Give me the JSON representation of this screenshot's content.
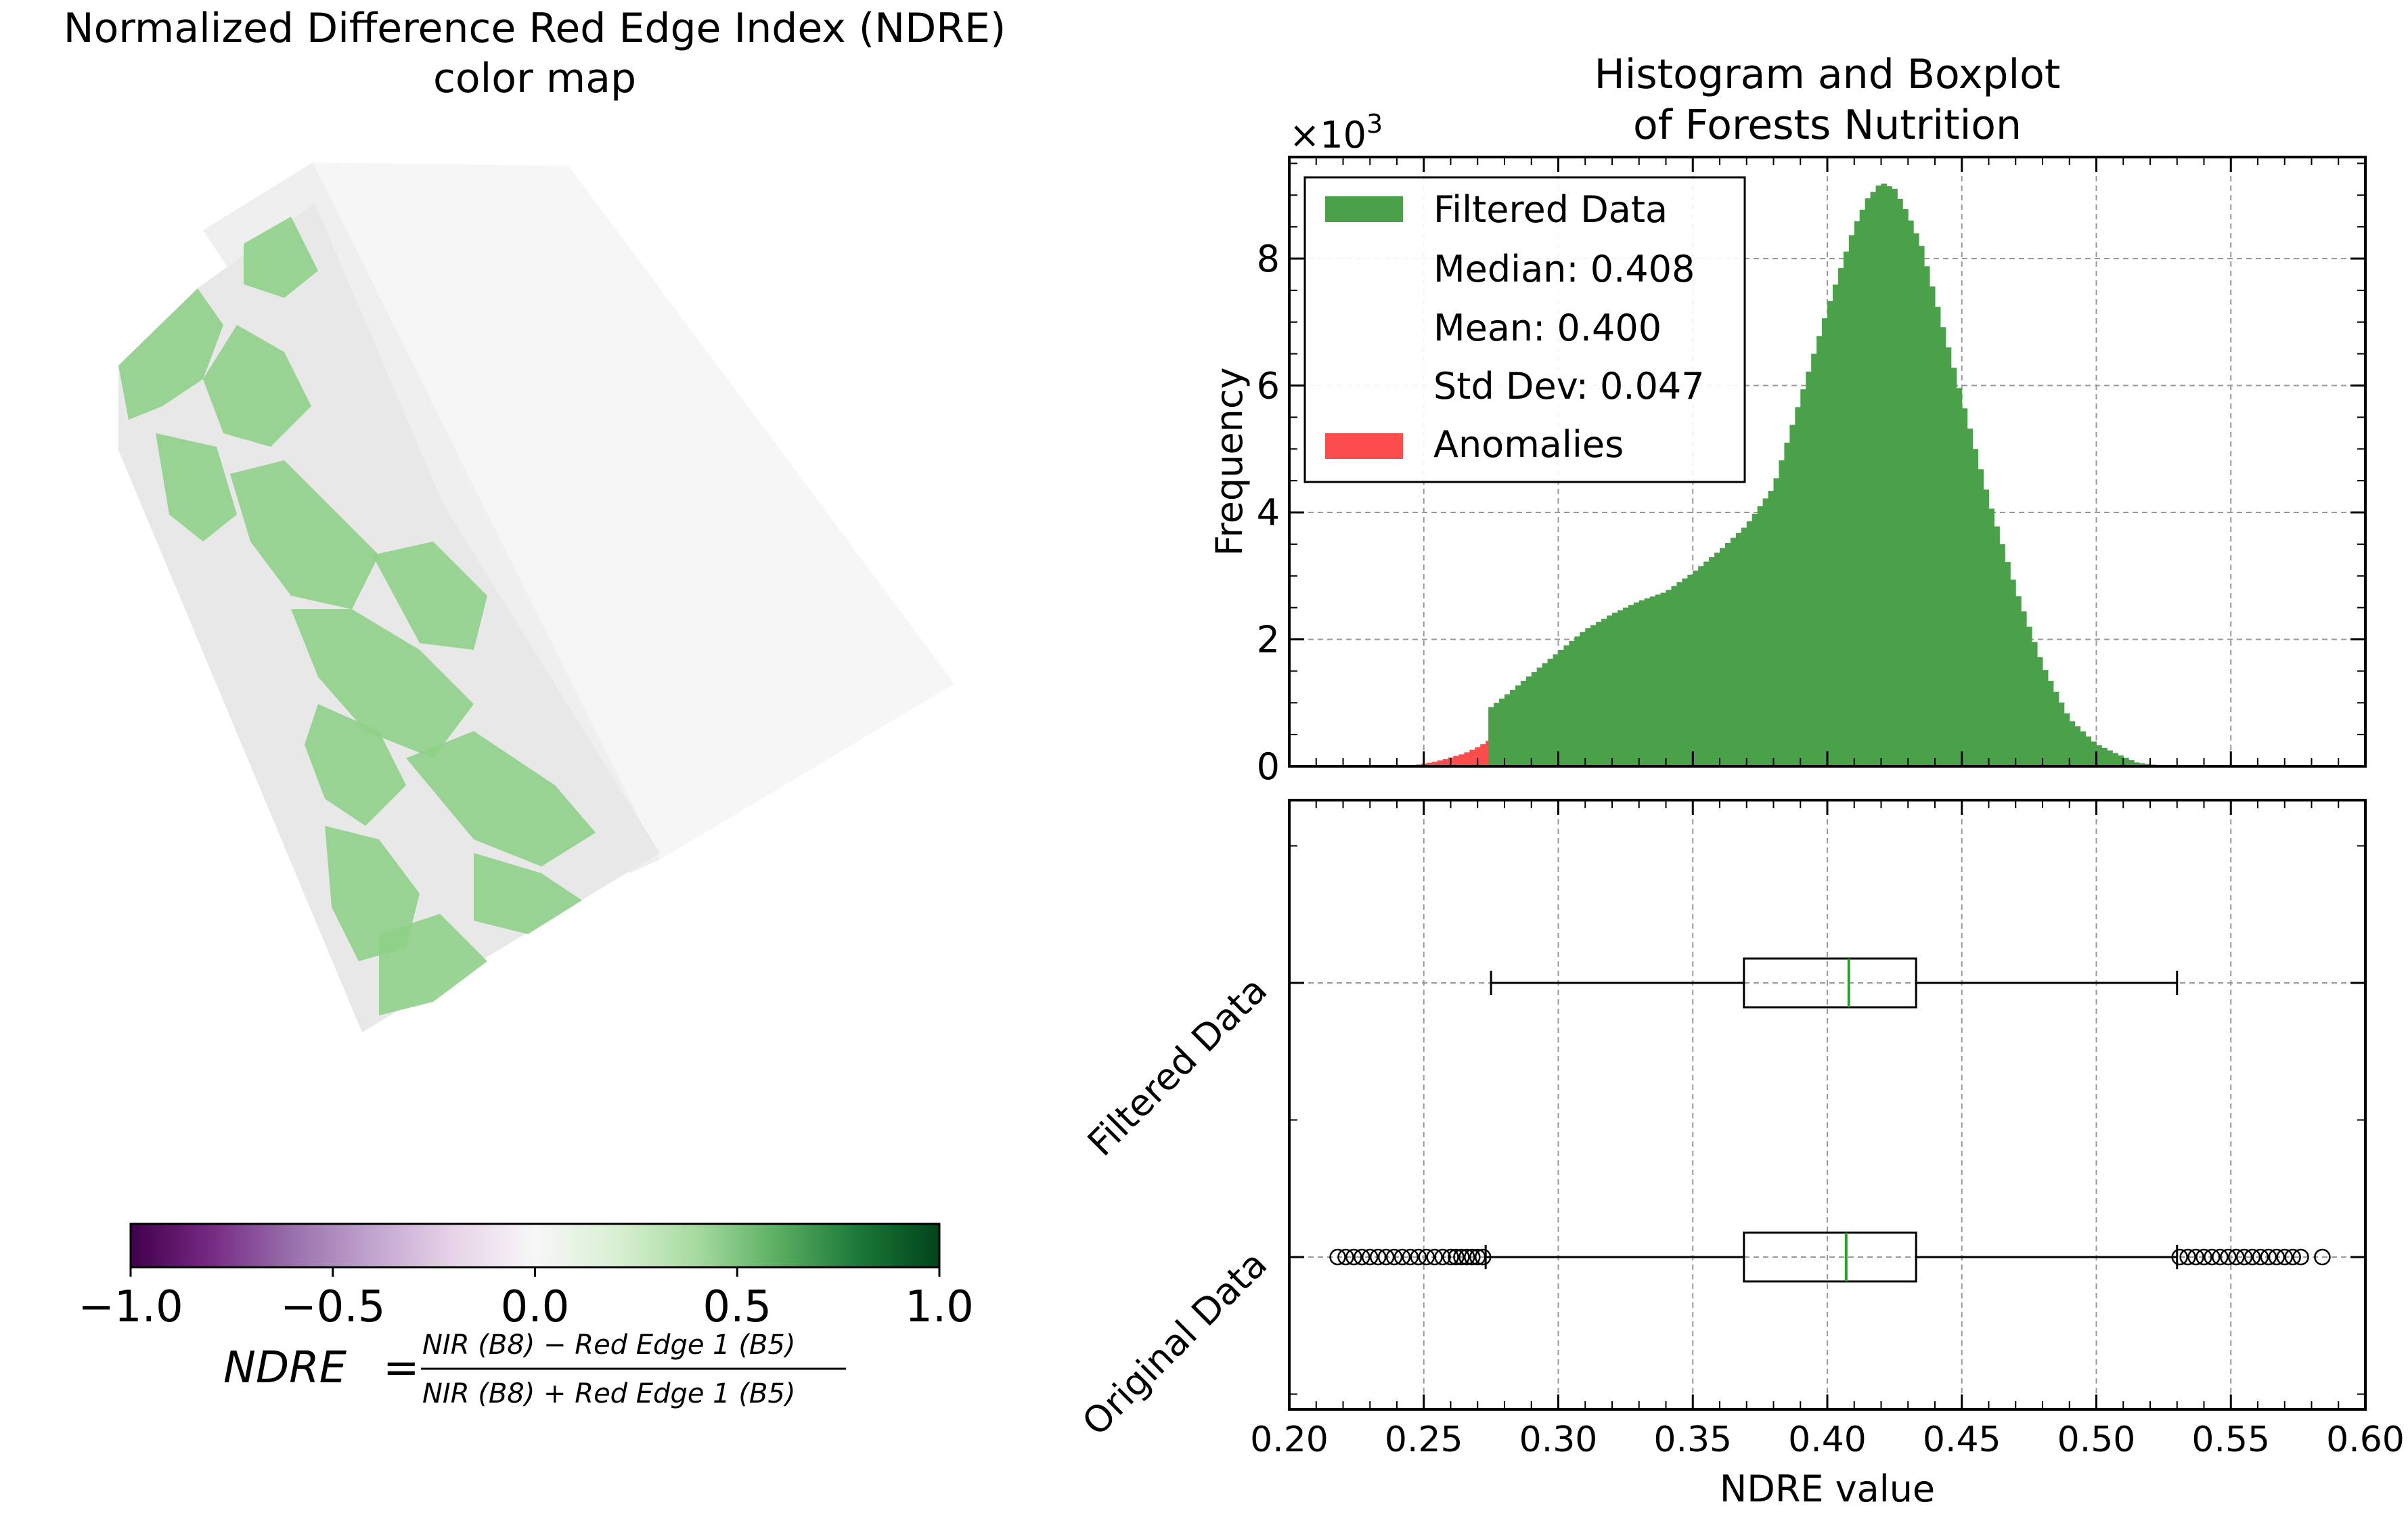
{
  "left_panel": {
    "title_line1": "Normalized Difference Red Edge Index (NDRE)",
    "title_line2": "color map",
    "colorbar": {
      "colormap": "PRGn",
      "stops": [
        "#40004b",
        "#762a83",
        "#9970ab",
        "#c2a5cf",
        "#e7d4e8",
        "#f7f7f7",
        "#d9f0d3",
        "#a6dba0",
        "#5aae61",
        "#1b7837",
        "#00441b"
      ],
      "range": [
        -1.0,
        1.0
      ],
      "tick_labels": [
        "−1.0",
        "−0.5",
        "0.0",
        "0.5",
        "1.0"
      ]
    },
    "formula": {
      "lhs": "NDRE",
      "equals": "=",
      "numerator": "NIR (B8) − Red Edge 1 (B5)",
      "denominator": "NIR (B8) + Red Edge 1 (B5)"
    },
    "map_colors": {
      "vegetation": "#8fd08a",
      "bare": "#e8e8e8",
      "background_swath": "#f6f6f6"
    }
  },
  "chart_data": [
    {
      "type": "histogram",
      "title_line1": "Histogram and Boxplot",
      "title_line2": "of Forests Nutrition",
      "ylabel": "Frequency",
      "y_scale_label": "×10",
      "y_scale_exponent": "3",
      "xlim": [
        0.2,
        0.6
      ],
      "ylim": [
        0,
        9.6
      ],
      "y_ticks": [
        0,
        2,
        4,
        6,
        8
      ],
      "y_tick_labels": [
        "0",
        "2",
        "4",
        "6",
        "8"
      ],
      "grid": true,
      "legend_position": "top-left",
      "legend": {
        "filtered_label": "Filtered Data",
        "median_label": "Median: 0.408",
        "mean_label": "Mean: 0.400",
        "std_label": "Std Dev: 0.047",
        "anomalies_label": "Anomalies"
      },
      "colors": {
        "filtered": "#4aa14a",
        "anomalies": "#fb4d4d"
      },
      "filtered_curve": {
        "x": [
          0.274,
          0.28,
          0.29,
          0.3,
          0.31,
          0.32,
          0.33,
          0.34,
          0.35,
          0.36,
          0.37,
          0.38,
          0.39,
          0.4,
          0.41,
          0.415,
          0.42,
          0.425,
          0.43,
          0.435,
          0.44,
          0.45,
          0.46,
          0.47,
          0.48,
          0.49,
          0.5,
          0.51,
          0.515,
          0.52,
          0.525,
          0.53
        ],
        "y": [
          0.9,
          1.1,
          1.45,
          1.8,
          2.15,
          2.4,
          2.6,
          2.75,
          3.05,
          3.4,
          3.8,
          4.4,
          5.8,
          7.2,
          8.5,
          8.95,
          9.2,
          9.1,
          8.7,
          8.2,
          7.4,
          5.8,
          4.2,
          2.8,
          1.6,
          0.75,
          0.35,
          0.15,
          0.06,
          0.03,
          0.015,
          0.0
        ]
      },
      "anomaly_curve": {
        "x": [
          0.245,
          0.25,
          0.255,
          0.26,
          0.265,
          0.27,
          0.274
        ],
        "y": [
          0.01,
          0.04,
          0.08,
          0.14,
          0.2,
          0.3,
          0.4
        ]
      }
    },
    {
      "type": "boxplot",
      "xlabel": "NDRE value",
      "xlim": [
        0.2,
        0.6
      ],
      "x_ticks": [
        0.2,
        0.25,
        0.3,
        0.35,
        0.4,
        0.45,
        0.5,
        0.55,
        0.6
      ],
      "x_tick_labels": [
        "0.20",
        "0.25",
        "0.30",
        "0.35",
        "0.40",
        "0.45",
        "0.50",
        "0.55",
        "0.60"
      ],
      "grid": true,
      "median_color": "#2ca02c",
      "boxes": [
        {
          "name": "Filtered Data",
          "whisker_low": 0.275,
          "q1": 0.369,
          "median": 0.408,
          "q3": 0.433,
          "whisker_high": 0.53,
          "fliers": []
        },
        {
          "name": "Original Data",
          "whisker_low": 0.273,
          "q1": 0.369,
          "median": 0.407,
          "q3": 0.433,
          "whisker_high": 0.53,
          "fliers": [
            0.218,
            0.221,
            0.224,
            0.227,
            0.23,
            0.233,
            0.236,
            0.239,
            0.242,
            0.245,
            0.248,
            0.251,
            0.254,
            0.257,
            0.26,
            0.262,
            0.264,
            0.266,
            0.268,
            0.27,
            0.272,
            0.531,
            0.534,
            0.537,
            0.54,
            0.543,
            0.546,
            0.549,
            0.552,
            0.555,
            0.558,
            0.561,
            0.564,
            0.567,
            0.57,
            0.573,
            0.576,
            0.584
          ]
        }
      ]
    }
  ]
}
